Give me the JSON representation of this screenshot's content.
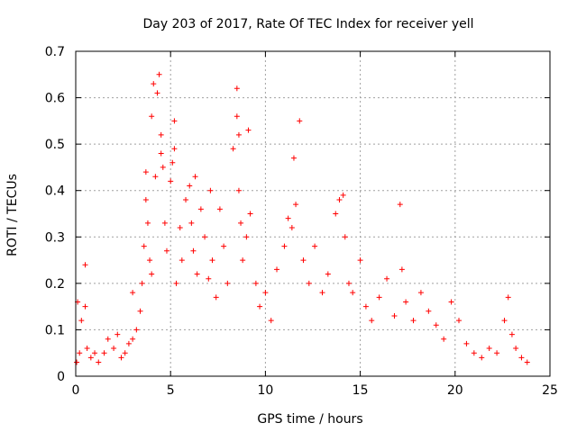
{
  "chart_data": {
    "type": "scatter",
    "title": "Day 203 of 2017, Rate Of TEC Index for receiver yell",
    "xlabel": "GPS time / hours",
    "ylabel": "ROTI / TECUs",
    "xlim": [
      0,
      25
    ],
    "ylim": [
      0,
      0.7
    ],
    "xticks": [
      "0",
      "5",
      "10",
      "15",
      "20",
      "25"
    ],
    "yticks": [
      "0",
      "0.1",
      "0.2",
      "0.3",
      "0.4",
      "0.5",
      "0.6",
      "0.7"
    ],
    "grid": true,
    "marker": "+",
    "color": "#ff0000",
    "series": [
      {
        "points": [
          [
            0.05,
            0.03
          ],
          [
            0.1,
            0.16
          ],
          [
            0.2,
            0.05
          ],
          [
            0.3,
            0.12
          ],
          [
            0.5,
            0.24
          ],
          [
            0.5,
            0.15
          ],
          [
            0.6,
            0.06
          ],
          [
            0.8,
            0.04
          ],
          [
            1.0,
            0.05
          ],
          [
            1.2,
            0.03
          ],
          [
            1.5,
            0.05
          ],
          [
            1.7,
            0.08
          ],
          [
            2.0,
            0.06
          ],
          [
            2.2,
            0.09
          ],
          [
            2.4,
            0.04
          ],
          [
            2.6,
            0.05
          ],
          [
            2.8,
            0.07
          ],
          [
            3.0,
            0.18
          ],
          [
            3.0,
            0.08
          ],
          [
            3.2,
            0.1
          ],
          [
            3.4,
            0.14
          ],
          [
            3.5,
            0.2
          ],
          [
            3.6,
            0.28
          ],
          [
            3.7,
            0.38
          ],
          [
            3.7,
            0.44
          ],
          [
            3.8,
            0.33
          ],
          [
            3.9,
            0.25
          ],
          [
            4.0,
            0.22
          ],
          [
            4.0,
            0.56
          ],
          [
            4.1,
            0.63
          ],
          [
            4.2,
            0.43
          ],
          [
            4.3,
            0.61
          ],
          [
            4.4,
            0.65
          ],
          [
            4.5,
            0.52
          ],
          [
            4.5,
            0.48
          ],
          [
            4.6,
            0.45
          ],
          [
            4.7,
            0.33
          ],
          [
            4.8,
            0.27
          ],
          [
            5.0,
            0.42
          ],
          [
            5.1,
            0.46
          ],
          [
            5.2,
            0.55
          ],
          [
            5.2,
            0.49
          ],
          [
            5.3,
            0.2
          ],
          [
            5.5,
            0.32
          ],
          [
            5.6,
            0.25
          ],
          [
            5.8,
            0.38
          ],
          [
            6.0,
            0.41
          ],
          [
            6.1,
            0.33
          ],
          [
            6.2,
            0.27
          ],
          [
            6.3,
            0.43
          ],
          [
            6.4,
            0.22
          ],
          [
            6.6,
            0.36
          ],
          [
            6.8,
            0.3
          ],
          [
            7.0,
            0.21
          ],
          [
            7.1,
            0.4
          ],
          [
            7.2,
            0.25
          ],
          [
            7.4,
            0.17
          ],
          [
            7.6,
            0.36
          ],
          [
            7.8,
            0.28
          ],
          [
            8.0,
            0.2
          ],
          [
            8.3,
            0.49
          ],
          [
            8.5,
            0.62
          ],
          [
            8.5,
            0.56
          ],
          [
            8.6,
            0.52
          ],
          [
            8.6,
            0.4
          ],
          [
            8.7,
            0.33
          ],
          [
            8.8,
            0.25
          ],
          [
            9.0,
            0.3
          ],
          [
            9.1,
            0.53
          ],
          [
            9.2,
            0.35
          ],
          [
            9.5,
            0.2
          ],
          [
            9.7,
            0.15
          ],
          [
            10.0,
            0.18
          ],
          [
            10.3,
            0.12
          ],
          [
            10.6,
            0.23
          ],
          [
            11.0,
            0.28
          ],
          [
            11.2,
            0.34
          ],
          [
            11.4,
            0.32
          ],
          [
            11.5,
            0.47
          ],
          [
            11.6,
            0.37
          ],
          [
            11.8,
            0.55
          ],
          [
            12.0,
            0.25
          ],
          [
            12.3,
            0.2
          ],
          [
            12.6,
            0.28
          ],
          [
            13.0,
            0.18
          ],
          [
            13.3,
            0.22
          ],
          [
            13.7,
            0.35
          ],
          [
            13.9,
            0.38
          ],
          [
            14.1,
            0.39
          ],
          [
            14.2,
            0.3
          ],
          [
            14.4,
            0.2
          ],
          [
            14.6,
            0.18
          ],
          [
            15.0,
            0.25
          ],
          [
            15.3,
            0.15
          ],
          [
            15.6,
            0.12
          ],
          [
            16.0,
            0.17
          ],
          [
            16.4,
            0.21
          ],
          [
            16.8,
            0.13
          ],
          [
            17.1,
            0.37
          ],
          [
            17.2,
            0.23
          ],
          [
            17.4,
            0.16
          ],
          [
            17.8,
            0.12
          ],
          [
            18.2,
            0.18
          ],
          [
            18.6,
            0.14
          ],
          [
            19.0,
            0.11
          ],
          [
            19.4,
            0.08
          ],
          [
            19.8,
            0.16
          ],
          [
            20.2,
            0.12
          ],
          [
            20.6,
            0.07
          ],
          [
            21.0,
            0.05
          ],
          [
            21.4,
            0.04
          ],
          [
            21.8,
            0.06
          ],
          [
            22.2,
            0.05
          ],
          [
            22.6,
            0.12
          ],
          [
            22.8,
            0.17
          ],
          [
            23.0,
            0.09
          ],
          [
            23.2,
            0.06
          ],
          [
            23.5,
            0.04
          ],
          [
            23.8,
            0.03
          ]
        ]
      }
    ]
  }
}
